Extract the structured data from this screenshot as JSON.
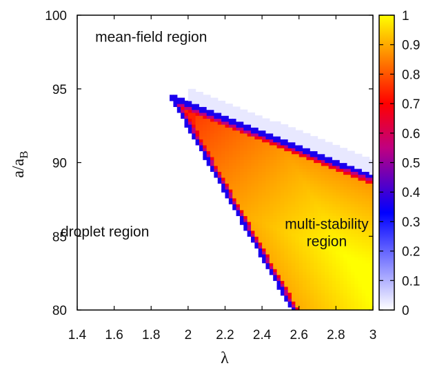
{
  "chart_data": {
    "type": "heatmap",
    "xlabel": "λ",
    "ylabel": {
      "main": "a/a",
      "sub": "B"
    },
    "x_ticks": [
      "1.4",
      "1.6",
      "1.8",
      "2",
      "2.2",
      "2.4",
      "2.6",
      "2.8",
      "3"
    ],
    "y_ticks": [
      "80",
      "85",
      "90",
      "95",
      "100"
    ],
    "xlim": [
      1.4,
      3.0
    ],
    "ylim": [
      80,
      100
    ],
    "colorbar": {
      "ticks": [
        "0",
        "0.1",
        "0.2",
        "0.3",
        "0.4",
        "0.5",
        "0.6",
        "0.7",
        "0.8",
        "0.9",
        "1"
      ],
      "range": [
        0,
        1
      ],
      "colors": [
        "#ffffff",
        "#0000ff",
        "#c00080",
        "#ff0000",
        "#ff8000",
        "#ffff00"
      ],
      "stops": [
        0,
        0.33,
        0.55,
        0.7,
        0.85,
        1.0
      ]
    },
    "regions": [
      {
        "name": "mean-field region",
        "value": 0.0
      },
      {
        "name": "droplet region",
        "value": 0.0
      },
      {
        "name": "multi-stability region",
        "value_range": [
          0.6,
          1.0
        ]
      }
    ],
    "boundaries": {
      "tip": [
        1.92,
        94.3
      ],
      "upper_end": [
        3.0,
        89.0
      ],
      "lower_end": [
        2.57,
        80.0
      ]
    },
    "annotations": [
      {
        "lines": [
          "mean-field region"
        ],
        "x": 1.8,
        "y": 98.2
      },
      {
        "lines": [
          "droplet region"
        ],
        "x": 1.55,
        "y": 85.0
      },
      {
        "lines": [
          "multi-stability",
          "region"
        ],
        "x": 2.75,
        "y": 85.5
      }
    ],
    "grid": false
  }
}
